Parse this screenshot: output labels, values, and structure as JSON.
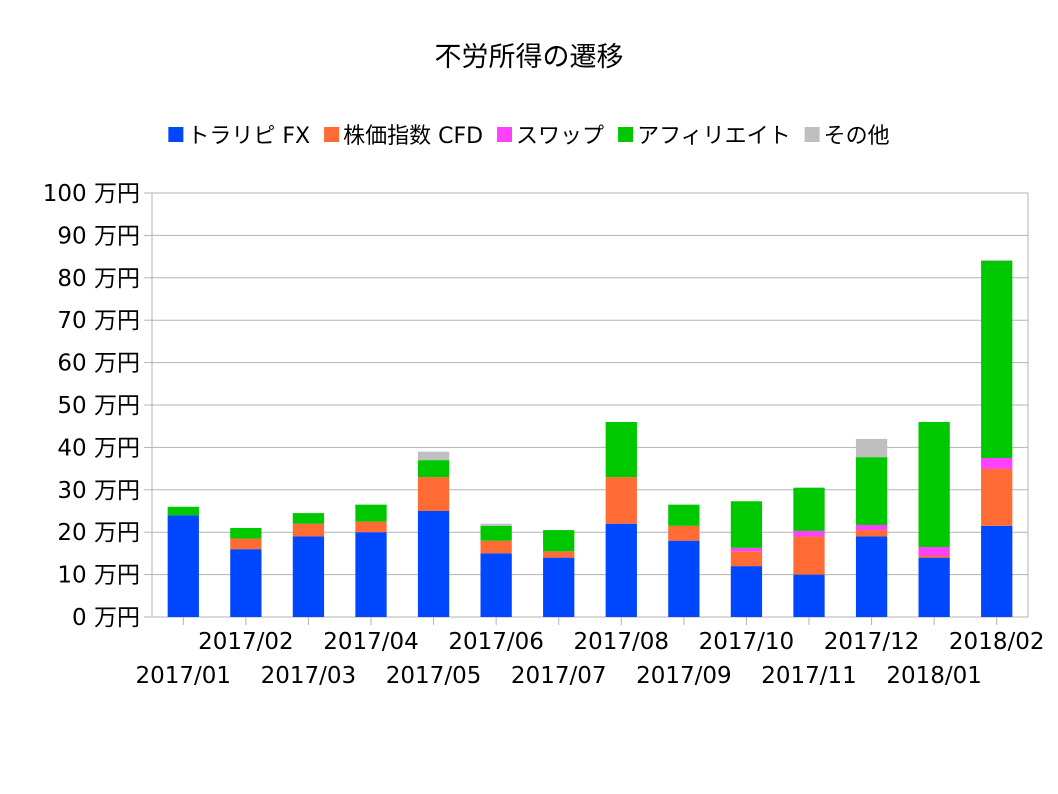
{
  "chart_data": {
    "type": "bar",
    "stacked": true,
    "title": "不労所得の遷移",
    "xlabel": "",
    "ylabel": "",
    "categories": [
      "2017/01",
      "2017/02",
      "2017/03",
      "2017/04",
      "2017/05",
      "2017/06",
      "2017/07",
      "2017/08",
      "2017/09",
      "2017/10",
      "2017/11",
      "2017/12",
      "2018/01",
      "2018/02"
    ],
    "series": [
      {
        "name": "トラリピ FX",
        "color": "#0047ff",
        "values": [
          24,
          16,
          19,
          20,
          25,
          15,
          14,
          22,
          18,
          12,
          10,
          19,
          14,
          21.5
        ]
      },
      {
        "name": "株価指数 CFD",
        "color": "#ff6b35",
        "values": [
          0,
          2.5,
          3,
          2.5,
          8,
          3,
          1.5,
          11,
          3.5,
          3.5,
          9,
          1.5,
          0.5,
          13.5
        ]
      },
      {
        "name": "スワップ",
        "color": "#ff40ff",
        "values": [
          0,
          0,
          0,
          0,
          0,
          0,
          0,
          0,
          0,
          0.8,
          1.3,
          1.2,
          2,
          2.5
        ]
      },
      {
        "name": "アフィリエイト",
        "color": "#00c800",
        "values": [
          2,
          2.5,
          2.5,
          4,
          4,
          3.5,
          5,
          13,
          5,
          11,
          10.2,
          16,
          29.5,
          46.5
        ]
      },
      {
        "name": "その他",
        "color": "#bfbfbf",
        "values": [
          0,
          0,
          0,
          0,
          2,
          0.5,
          0,
          0,
          0,
          0,
          0,
          4.3,
          0,
          0.2
        ]
      }
    ],
    "yticks": [
      "0 万円",
      "10 万円",
      "20 万円",
      "30 万円",
      "40 万円",
      "50 万円",
      "60 万円",
      "70 万円",
      "80 万円",
      "90 万円",
      "100 万円"
    ],
    "ylim": [
      0,
      100
    ],
    "grid": true,
    "legend_position": "top"
  }
}
